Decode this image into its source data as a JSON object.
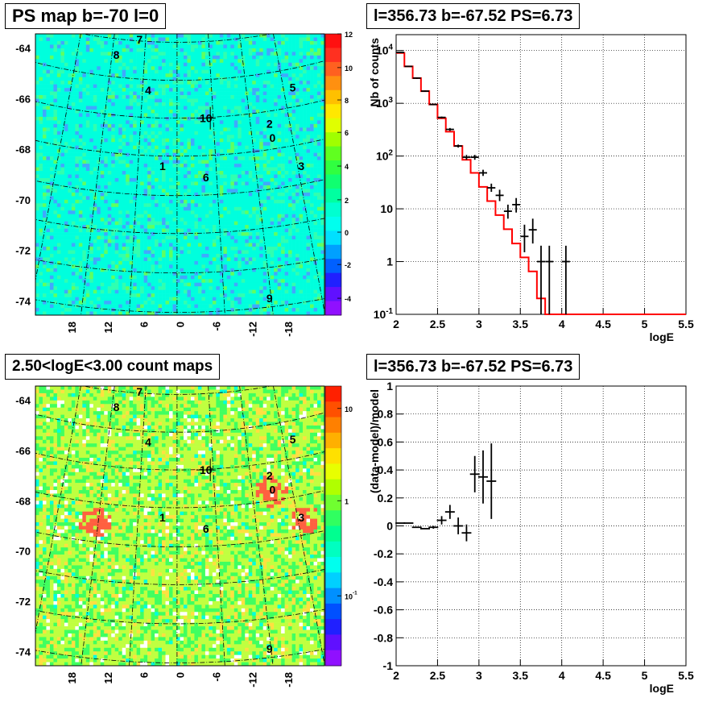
{
  "panels": {
    "ps_map_title": "PS map b=-70 l=0",
    "count_map_title": "2.50<logE<3.00 count maps",
    "spectrum_title": "l=356.73 b=-67.52 PS=6.73",
    "residual_title": "l=356.73 b=-67.52 PS=6.73"
  },
  "chart_data": [
    {
      "id": "ps_map",
      "type": "heatmap",
      "title": "PS map b=-70 l=0",
      "x_ticks": [
        "18",
        "12",
        "6",
        "0",
        "-6",
        "-12",
        "-18"
      ],
      "y_ticks": [
        "-64",
        "-66",
        "-68",
        "-70",
        "-72",
        "-74"
      ],
      "colorbar_ticks": [
        "12",
        "10",
        "8",
        "6",
        "4",
        "2",
        "0",
        "-2",
        "-4"
      ],
      "colorbar_range": [
        -5,
        12
      ],
      "colors": {
        "background": "#00ffdd",
        "low": "#4080ff",
        "high": "#80ff40"
      },
      "sources": [
        "7",
        "8",
        "4",
        "10",
        "5",
        "2",
        "0",
        "3",
        "1",
        "6",
        "9"
      ]
    },
    {
      "id": "spectrum",
      "type": "line",
      "title": "l=356.73 b=-67.52 PS=6.73",
      "xlabel": "logE",
      "ylabel": "Nb of counts",
      "xlim": [
        2,
        5.5
      ],
      "ylim": [
        0.1,
        20000
      ],
      "ylog": true,
      "x_ticks": [
        "2",
        "2.5",
        "3",
        "3.5",
        "4",
        "4.5",
        "5",
        "5.5"
      ],
      "y_ticks": [
        "10^-1",
        "1",
        "10",
        "10^2",
        "10^3",
        "10^4"
      ],
      "grid": true,
      "series": [
        {
          "kind": "model-step",
          "color": "#ff0000",
          "x_edges": [
            2.0,
            2.1,
            2.2,
            2.3,
            2.4,
            2.5,
            2.6,
            2.7,
            2.8,
            2.9,
            3.0,
            3.1,
            3.2,
            3.3,
            3.4,
            3.5,
            3.6,
            3.7,
            3.8,
            3.9,
            4.0,
            5.5
          ],
          "values": [
            9000,
            5000,
            3000,
            1700,
            950,
            520,
            290,
            155,
            85,
            48,
            26,
            14,
            7.6,
            4.1,
            2.2,
            1.2,
            0.65,
            0.2,
            0.1,
            0.1,
            0.1
          ]
        },
        {
          "kind": "data-points",
          "color": "#000000",
          "x": [
            2.05,
            2.15,
            2.25,
            2.35,
            2.45,
            2.55,
            2.65,
            2.75,
            2.85,
            2.95,
            3.05,
            3.15,
            3.25,
            3.35,
            3.45,
            3.55,
            3.65,
            3.75,
            3.85,
            4.05
          ],
          "y": [
            9200,
            5000,
            3000,
            1700,
            950,
            540,
            320,
            155,
            95,
            95,
            48,
            25,
            18,
            9,
            12,
            3,
            4,
            1,
            1,
            1
          ],
          "y_low": [
            9000,
            4900,
            2900,
            1650,
            920,
            520,
            300,
            145,
            85,
            85,
            42,
            21,
            14,
            6.5,
            8.5,
            1.5,
            2.2,
            0.1,
            0.1,
            0.1
          ],
          "y_high": [
            9400,
            5100,
            3100,
            1750,
            980,
            560,
            340,
            165,
            105,
            105,
            55,
            30,
            23,
            12,
            16,
            5,
            6.5,
            2,
            2,
            2
          ]
        }
      ]
    },
    {
      "id": "count_map",
      "type": "heatmap",
      "title": "2.50<logE<3.00 count maps",
      "x_ticks": [
        "18",
        "12",
        "6",
        "0",
        "-6",
        "-12",
        "-18"
      ],
      "y_ticks": [
        "-64",
        "-66",
        "-68",
        "-70",
        "-72",
        "-74"
      ],
      "colorbar_ticks": [
        "10",
        "1",
        "10^-1"
      ],
      "colorbar_log": true,
      "colors": {
        "background": "#c8ff40",
        "mid": "#40ff60",
        "high": "#ff6030"
      },
      "sources": [
        "7",
        "8",
        "4",
        "10",
        "5",
        "2",
        "0",
        "3",
        "1",
        "6",
        "9"
      ]
    },
    {
      "id": "residual",
      "type": "scatter",
      "title": "l=356.73 b=-67.52 PS=6.73",
      "xlabel": "logE",
      "ylabel": "(data-model)/model",
      "xlim": [
        2,
        5.5
      ],
      "ylim": [
        -1,
        1
      ],
      "x_ticks": [
        "2",
        "2.5",
        "3",
        "3.5",
        "4",
        "4.5",
        "5",
        "5.5"
      ],
      "y_ticks": [
        "1",
        "0.8",
        "0.6",
        "0.4",
        "0.2",
        "0",
        "-0.2",
        "-0.4",
        "-0.6",
        "-0.8",
        "-1"
      ],
      "grid": true,
      "series": [
        {
          "kind": "data-points",
          "color": "#000000",
          "x": [
            2.05,
            2.15,
            2.25,
            2.35,
            2.45,
            2.55,
            2.65,
            2.75,
            2.85,
            2.95,
            3.05,
            3.15
          ],
          "y": [
            0.02,
            0.02,
            -0.01,
            -0.02,
            -0.01,
            0.04,
            0.1,
            0.0,
            -0.05,
            0.37,
            0.35,
            0.32
          ],
          "y_err": [
            0.0,
            0.0,
            0.0,
            0.0,
            0.01,
            0.03,
            0.05,
            0.06,
            0.06,
            0.13,
            0.19,
            0.27
          ]
        }
      ]
    }
  ]
}
